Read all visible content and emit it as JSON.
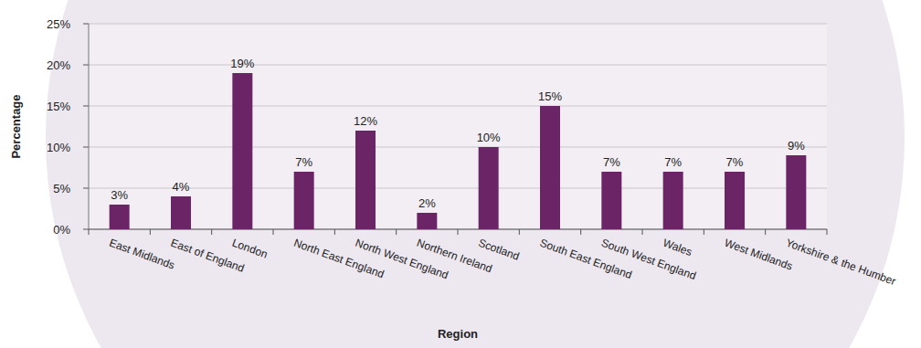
{
  "chart_data": {
    "type": "bar",
    "x_label": "Region",
    "y_label": "Percentage",
    "categories": [
      "East Midlands",
      "East of England",
      "London",
      "North East England",
      "North West England",
      "Northern Ireland",
      "Scotland",
      "South East England",
      "South West England",
      "Wales",
      "West Midlands",
      "Yorkshire & the Humber"
    ],
    "values": [
      3,
      4,
      19,
      7,
      12,
      2,
      10,
      15,
      7,
      7,
      7,
      9
    ],
    "value_labels": [
      "3%",
      "4%",
      "19%",
      "7%",
      "12%",
      "2%",
      "10%",
      "15%",
      "7%",
      "7%",
      "7%",
      "9%"
    ],
    "data_labels": true,
    "color": "#6b2566",
    "ylim": [
      0,
      25
    ],
    "yticks": [
      {
        "value": 0,
        "label": "0%"
      },
      {
        "value": 5,
        "label": "5%"
      },
      {
        "value": 10,
        "label": "10%"
      },
      {
        "value": 15,
        "label": "15%"
      },
      {
        "value": 20,
        "label": "20%"
      },
      {
        "value": 25,
        "label": "25%"
      }
    ],
    "grid": true
  }
}
